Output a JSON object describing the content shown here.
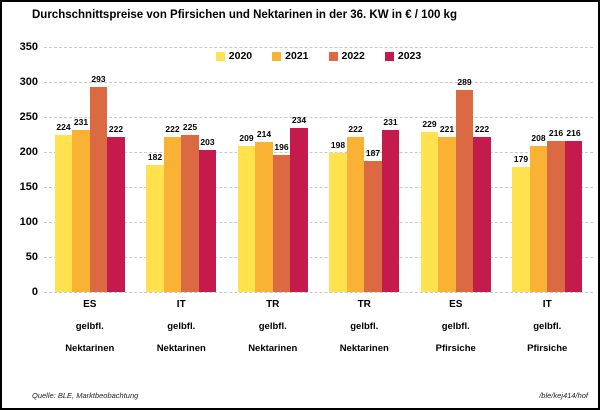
{
  "title": "Durchschnittspreise von Pfirsichen und Nektarinen in der 36. KW in € / 100 kg",
  "chart_data": {
    "type": "bar",
    "title": "Durchschnittspreise von Pfirsichen und Nektarinen in der 36. KW in € / 100 kg",
    "categories": [
      {
        "country": "ES",
        "flesh": "gelbfl.",
        "product": "Nektarinen"
      },
      {
        "country": "IT",
        "flesh": "gelbfl.",
        "product": "Nektarinen"
      },
      {
        "country": "TR",
        "flesh": "gelbfl.",
        "product": "Nektarinen"
      },
      {
        "country": "TR",
        "flesh": "gelbfl.",
        "product": "Nektarinen"
      },
      {
        "country": "ES",
        "flesh": "gelbfl.",
        "product": "Pfirsiche"
      },
      {
        "country": "IT",
        "flesh": "gelbfl.",
        "product": "Pfirsiche"
      }
    ],
    "series": [
      {
        "name": "2020",
        "color": "#FFE24D",
        "values": [
          224,
          182,
          209,
          198,
          229,
          179
        ]
      },
      {
        "name": "2021",
        "color": "#F9B233",
        "values": [
          231,
          222,
          214,
          222,
          221,
          208
        ]
      },
      {
        "name": "2022",
        "color": "#DB6A42",
        "values": [
          293,
          225,
          196,
          187,
          289,
          216
        ]
      },
      {
        "name": "2023",
        "color": "#C51A4C",
        "values": [
          222,
          203,
          234,
          231,
          222,
          216
        ]
      }
    ],
    "ylim": [
      0,
      350
    ],
    "yticks": [
      0,
      50,
      100,
      150,
      200,
      250,
      300,
      350
    ],
    "grid": "horizontal-dashed",
    "legend_position": "top-center",
    "value_labels": true
  },
  "footer": {
    "source": "Quelle: BLE, Marktbeobachtung",
    "code": "/ble/kej414/hof"
  }
}
